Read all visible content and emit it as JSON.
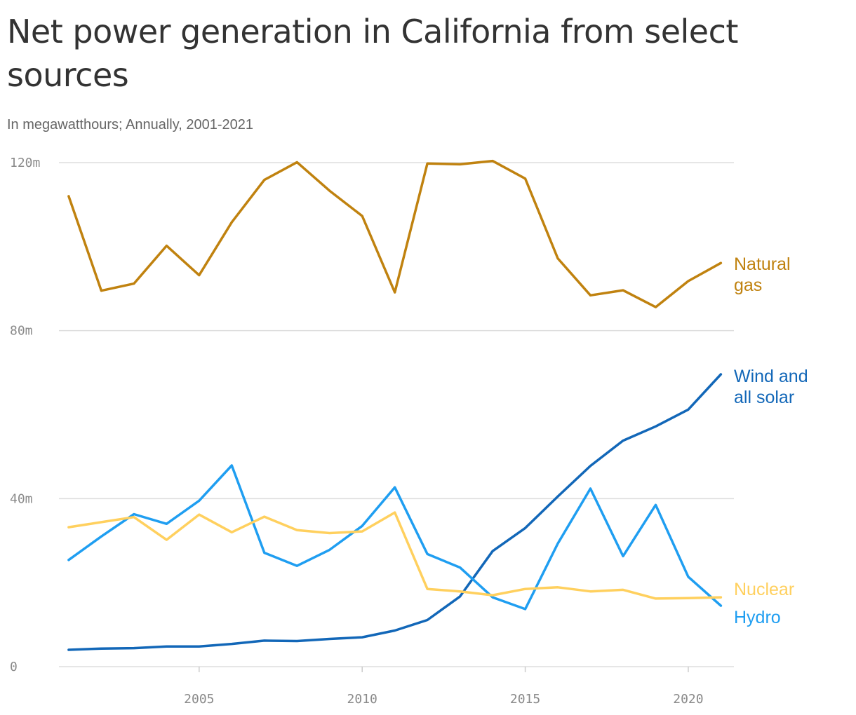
{
  "header": {
    "title": "Net power generation in California from select sources",
    "subtitle": "In megawatthours; Annually, 2001-2021"
  },
  "chart_data": {
    "type": "line",
    "title": "Net power generation in California from select sources",
    "subtitle": "In megawatthours; Annually, 2001-2021",
    "xlabel": "",
    "ylabel": "",
    "x": [
      2001,
      2002,
      2003,
      2004,
      2005,
      2006,
      2007,
      2008,
      2009,
      2010,
      2011,
      2012,
      2013,
      2014,
      2015,
      2016,
      2017,
      2018,
      2019,
      2020,
      2021
    ],
    "xlim": [
      2000.7,
      2021.4
    ],
    "ylim": [
      0,
      120
    ],
    "x_ticks": [
      2005,
      2010,
      2015,
      2020
    ],
    "x_tick_labels": [
      "2005",
      "2010",
      "2015",
      "2020"
    ],
    "y_ticks": [
      0,
      40,
      80,
      120
    ],
    "y_tick_labels": [
      "0",
      "40m",
      "80m",
      "120m"
    ],
    "grid": "horizontal",
    "legend": "direct labels at line ends (right)",
    "series": [
      {
        "name": "Natural gas",
        "label_lines": [
          "Natural",
          "gas"
        ],
        "color": "#c0820f",
        "values": [
          112,
          89.5,
          91.2,
          100.2,
          93.2,
          105.8,
          115.9,
          120.1,
          113.3,
          107.3,
          89.1,
          119.8,
          119.6,
          120.4,
          116.2,
          97.2,
          88.4,
          89.6,
          85.6,
          91.8,
          96.1
        ]
      },
      {
        "name": "Wind and all solar",
        "label_lines": [
          "Wind and",
          "all solar"
        ],
        "color": "#1267b8",
        "values": [
          4.0,
          4.3,
          4.4,
          4.8,
          4.8,
          5.4,
          6.2,
          6.1,
          6.6,
          7.0,
          8.6,
          11.1,
          16.7,
          27.5,
          33.0,
          40.5,
          47.8,
          53.8,
          57.2,
          61.2,
          69.6
        ]
      },
      {
        "name": "Hydro",
        "label_lines": [
          "Hydro"
        ],
        "color": "#1f9ef1",
        "values": [
          25.4,
          31.0,
          36.3,
          34.0,
          39.5,
          47.9,
          27.1,
          24.0,
          27.8,
          33.5,
          42.7,
          26.8,
          23.6,
          16.5,
          13.7,
          29.3,
          42.4,
          26.3,
          38.5,
          21.4,
          14.5
        ]
      },
      {
        "name": "Nuclear",
        "label_lines": [
          "Nuclear"
        ],
        "color": "#ffd05e",
        "values": [
          33.2,
          34.4,
          35.6,
          30.2,
          36.2,
          32.0,
          35.7,
          32.5,
          31.8,
          32.2,
          36.7,
          18.5,
          17.9,
          17.0,
          18.5,
          18.9,
          17.9,
          18.3,
          16.2,
          16.3,
          16.5
        ]
      }
    ]
  }
}
